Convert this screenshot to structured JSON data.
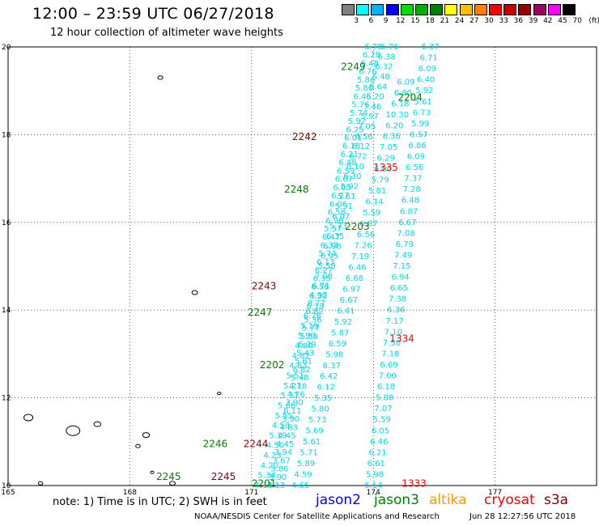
{
  "header": {
    "title": "12:00 – 23:59 UTC 06/27/2018",
    "subtitle": "12 hour collection of altimeter wave heights"
  },
  "colorbar": {
    "unit_label": "(ft)",
    "labels": [
      "3",
      "6",
      "9",
      "12",
      "15",
      "18",
      "21",
      "24",
      "27",
      "30",
      "33",
      "36",
      "39",
      "42",
      "45",
      "70"
    ],
    "colors": [
      "#808080",
      "#00ffff",
      "#00b4ff",
      "#0000ff",
      "#00e000",
      "#00b000",
      "#008000",
      "#ffff00",
      "#ffc000",
      "#ff8000",
      "#ff0000",
      "#c80000",
      "#960000",
      "#a00060",
      "#ff00ff",
      "#000000"
    ]
  },
  "map": {
    "lon_ticks": [
      "165",
      "168",
      "171",
      "174",
      "177"
    ],
    "lat_ticks": [
      "10",
      "12",
      "14",
      "16",
      "18",
      "20"
    ],
    "lon_range": [
      165,
      179.5
    ],
    "lat_range": [
      10,
      20
    ],
    "lon_values": [
      165,
      168,
      171,
      174,
      177
    ],
    "lat_values": [
      10,
      12,
      14,
      16,
      18,
      20
    ],
    "grid": "dotted",
    "swh_color": "#00d8e8",
    "passes": [
      {
        "start": [
          171.6,
          10.0
        ],
        "end": [
          174.0,
          20.0
        ],
        "values": [
          "6.78",
          "6.28",
          "6.48",
          "6.76",
          "5.86",
          "5.86",
          "6.45",
          "5.76",
          "5.74",
          "5.92",
          "6.25",
          "6.01",
          "6.18",
          "6.21",
          "6.48",
          "6.59",
          "6.07",
          "6.05",
          "6.27",
          "6.06",
          "6.58",
          "6.96",
          "5.57",
          "6.47",
          "6.33",
          "5.74",
          "6.13",
          "6.27",
          "6.35",
          "6.56",
          "4.97",
          "8.77",
          "6.82",
          "5.36",
          "5.77",
          "5.59",
          "6.39",
          "5.43",
          "5.61",
          "6.82",
          "5.48",
          "4.78",
          "4.26",
          "3.90",
          "6.11",
          "3.90",
          "4.83",
          "4.45",
          "4.45",
          "3.94",
          "3.67",
          "3.86",
          "3.90",
          "3.13"
        ]
      },
      {
        "start": [
          171.3,
          10.0
        ],
        "end": [
          174.4,
          20.0
        ],
        "values": [
          "6.76",
          "6.38",
          "6.32",
          "5.48",
          "5.64",
          "6.20",
          "7.46",
          "5.97",
          "7.05",
          "6.56",
          "6.12",
          "6.72",
          "6.10",
          "6.30",
          "5.92",
          "5.61",
          "5.91",
          "6.07",
          "5.73",
          "6.35",
          "6.98",
          "6.95",
          "5.59",
          "7.08",
          "6.71",
          "6.30",
          "6.19",
          "6.76",
          "5.19",
          "5.90",
          "4.80",
          "4.82",
          "4.63",
          "5.51",
          "5.21",
          "5.37",
          "5.66",
          "5.55",
          "4.58",
          "5.19",
          "4.50",
          "4.23",
          "4.20",
          "5.34",
          "4.14"
        ]
      },
      {
        "start": [
          172.2,
          10.0
        ],
        "end": [
          174.8,
          19.2
        ],
        "values": [
          "6.09",
          "6.80",
          "6.18",
          "10.30",
          "6.20",
          "6.36",
          "7.05",
          "6.29",
          "6.00",
          "5.79",
          "5.81",
          "6.14",
          "5.59",
          "6.87",
          "6.56",
          "7.26",
          "7.19",
          "6.46",
          "6.68",
          "6.97",
          "6.67",
          "6.41",
          "5.92",
          "5.87",
          "6.59",
          "5.98",
          "6.37",
          "6.42",
          "6.12",
          "5.35",
          "5.80",
          "5.73",
          "5.69",
          "5.61",
          "5.71",
          "5.89",
          "4.59",
          "4.65"
        ]
      },
      {
        "start": [
          174.0,
          10.0
        ],
        "end": [
          175.4,
          20.0
        ],
        "values": [
          "6.37",
          "6.71",
          "6.09",
          "6.40",
          "5.92",
          "5.61",
          "6.73",
          "5.99",
          "6.57",
          "6.86",
          "6.09",
          "6.56",
          "7.37",
          "7.28",
          "6.48",
          "6.87",
          "6.67",
          "7.08",
          "6.79",
          "7.49",
          "7.15",
          "6.94",
          "6.65",
          "7.38",
          "6.36",
          "7.17",
          "7.10",
          "7.50",
          "7.18",
          "6.69",
          "7.00",
          "6.18",
          "5.88",
          "7.07",
          "5.59",
          "6.05",
          "6.46",
          "6.21",
          "6.61",
          "5.98",
          "6.14"
        ]
      }
    ],
    "time_labels": [
      {
        "text": "2249",
        "lon": 173.2,
        "lat": 19.55,
        "color": "#008000"
      },
      {
        "text": "2204",
        "lon": 174.6,
        "lat": 18.85,
        "color": "#008000"
      },
      {
        "text": "2242",
        "lon": 172.0,
        "lat": 17.95,
        "color": "#800000"
      },
      {
        "text": "1335",
        "lon": 174.0,
        "lat": 17.25,
        "color": "#ff0000"
      },
      {
        "text": "2248",
        "lon": 171.8,
        "lat": 16.75,
        "color": "#008000"
      },
      {
        "text": "2203",
        "lon": 173.3,
        "lat": 15.9,
        "color": "#008000"
      },
      {
        "text": "2243",
        "lon": 171.0,
        "lat": 14.55,
        "color": "#800000"
      },
      {
        "text": "2247",
        "lon": 170.9,
        "lat": 13.95,
        "color": "#008000"
      },
      {
        "text": "1334",
        "lon": 174.4,
        "lat": 13.35,
        "color": "#ff0000"
      },
      {
        "text": "2202",
        "lon": 171.2,
        "lat": 12.75,
        "color": "#008000"
      },
      {
        "text": "2246",
        "lon": 169.8,
        "lat": 10.95,
        "color": "#008000"
      },
      {
        "text": "2244",
        "lon": 170.8,
        "lat": 10.95,
        "color": "#800000"
      },
      {
        "text": "2245",
        "lon": 170.0,
        "lat": 10.2,
        "color": "#800000"
      },
      {
        "text": "2245",
        "lon": 168.65,
        "lat": 10.2,
        "color": "#008000"
      },
      {
        "text": "2201",
        "lon": 171.0,
        "lat": 10.05,
        "color": "#008000"
      },
      {
        "text": "1333",
        "lon": 174.7,
        "lat": 10.05,
        "color": "#ff0000"
      }
    ]
  },
  "footer": {
    "note": "note: 1) Time is in UTC; 2) SWH is in feet",
    "satellites": [
      {
        "name": "jason2",
        "color": "#0000ff"
      },
      {
        "name": "jason3",
        "color": "#008000"
      },
      {
        "name": "altika",
        "color": "#ff9900"
      },
      {
        "name": "cryosat",
        "color": "#ff0000"
      },
      {
        "name": "s3a",
        "color": "#800000"
      }
    ],
    "credit": "NOAA/NESDIS Center for Satellite Applications and Research",
    "timestamp": "Jun 28 12:27:56 UTC 2018"
  }
}
